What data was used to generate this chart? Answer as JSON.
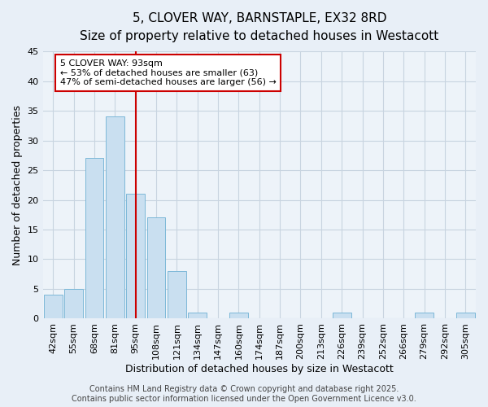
{
  "title_line1": "5, CLOVER WAY, BARNSTAPLE, EX32 8RD",
  "title_line2": "Size of property relative to detached houses in Westacott",
  "xlabel": "Distribution of detached houses by size in Westacott",
  "ylabel": "Number of detached properties",
  "categories": [
    "42sqm",
    "55sqm",
    "68sqm",
    "81sqm",
    "95sqm",
    "108sqm",
    "121sqm",
    "134sqm",
    "147sqm",
    "160sqm",
    "174sqm",
    "187sqm",
    "200sqm",
    "213sqm",
    "226sqm",
    "239sqm",
    "252sqm",
    "266sqm",
    "279sqm",
    "292sqm",
    "305sqm"
  ],
  "values": [
    4,
    5,
    27,
    34,
    21,
    17,
    8,
    1,
    0,
    1,
    0,
    0,
    0,
    0,
    1,
    0,
    0,
    0,
    1,
    0,
    1
  ],
  "bar_color": "#c9dff0",
  "bar_edge_color": "#7db8d8",
  "grid_color": "#c8d4e0",
  "background_color": "#e8eff7",
  "plot_bg_color": "#edf3f9",
  "vline_color": "#cc0000",
  "vline_index": 4,
  "annotation_text_line1": "5 CLOVER WAY: 93sqm",
  "annotation_text_line2": "← 53% of detached houses are smaller (63)",
  "annotation_text_line3": "47% of semi-detached houses are larger (56) →",
  "annotation_box_color": "#ffffff",
  "annotation_box_edge": "#cc0000",
  "ylim": [
    0,
    45
  ],
  "yticks": [
    0,
    5,
    10,
    15,
    20,
    25,
    30,
    35,
    40,
    45
  ],
  "footer_line1": "Contains HM Land Registry data © Crown copyright and database right 2025.",
  "footer_line2": "Contains public sector information licensed under the Open Government Licence v3.0.",
  "title_fontsize": 11,
  "subtitle_fontsize": 10,
  "axis_label_fontsize": 9,
  "tick_fontsize": 8,
  "annotation_fontsize": 8,
  "footer_fontsize": 7
}
